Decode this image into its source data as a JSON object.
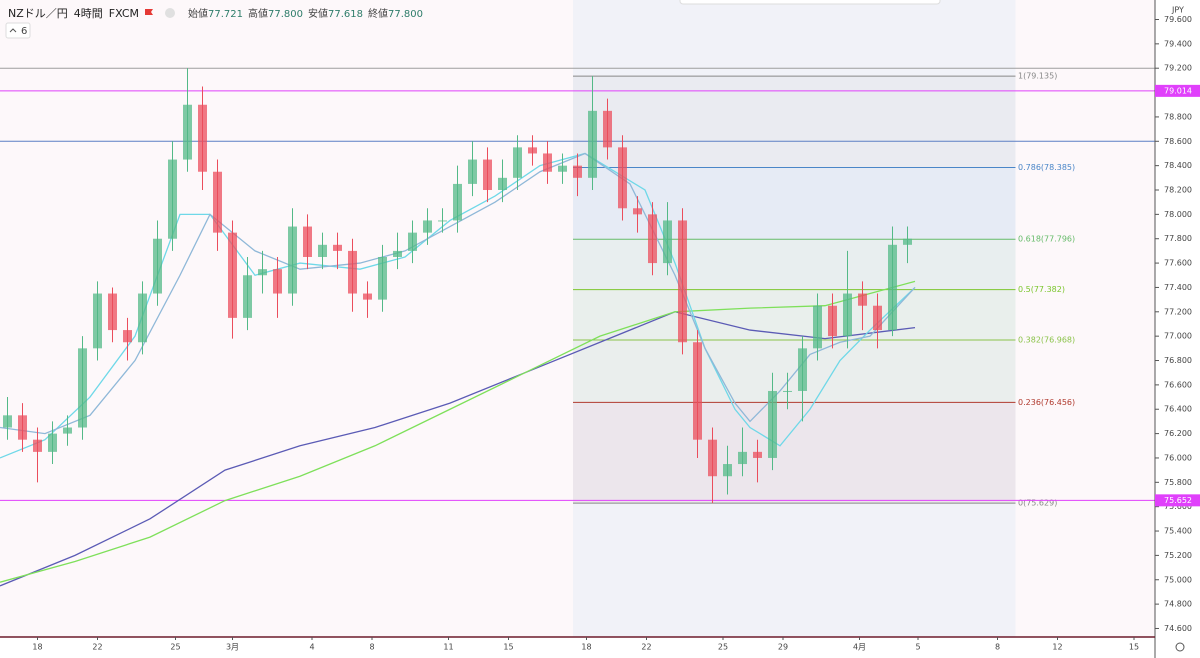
{
  "header": {
    "symbol": "NZドル／円",
    "interval": "4時間",
    "source": "FXCM",
    "indicator_count": "6",
    "currency": "JPY",
    "ohlc": [
      {
        "label": "始値",
        "value": "77.721"
      },
      {
        "label": "高値",
        "value": "77.800"
      },
      {
        "label": "安値",
        "value": "77.618"
      },
      {
        "label": "終値",
        "value": "77.800"
      }
    ]
  },
  "chart_data": {
    "type": "candlestick",
    "xlim": [
      0,
      77
    ],
    "ylim": [
      74.53,
      79.76
    ],
    "xticks": [
      {
        "value": 2.5,
        "label": "18"
      },
      {
        "value": 6.5,
        "label": "22"
      },
      {
        "value": 11.7,
        "label": "25"
      },
      {
        "value": 15.5,
        "label": "3月"
      },
      {
        "value": 20.8,
        "label": "4"
      },
      {
        "value": 24.8,
        "label": "8"
      },
      {
        "value": 29.9,
        "label": "11"
      },
      {
        "value": 33.9,
        "label": "15"
      },
      {
        "value": 39.1,
        "label": "18"
      },
      {
        "value": 43.1,
        "label": "22"
      },
      {
        "value": 48.2,
        "label": "25"
      },
      {
        "value": 52.2,
        "label": "29"
      },
      {
        "value": 57.3,
        "label": "4月"
      },
      {
        "value": 61.2,
        "label": "5"
      },
      {
        "value": 66.5,
        "label": "8"
      },
      {
        "value": 70.5,
        "label": "12"
      },
      {
        "value": 75.6,
        "label": "15"
      }
    ],
    "yticks": [
      {
        "value": 74.6,
        "label": "74.600"
      },
      {
        "value": 74.8,
        "label": "74.800"
      },
      {
        "value": 75,
        "label": "75.000"
      },
      {
        "value": 75.2,
        "label": "75.200"
      },
      {
        "value": 75.4,
        "label": "75.400"
      },
      {
        "value": 75.6,
        "label": "75.600"
      },
      {
        "value": 75.8,
        "label": "75.800"
      },
      {
        "value": 76,
        "label": "76.000"
      },
      {
        "value": 76.2,
        "label": "76.200"
      },
      {
        "value": 76.4,
        "label": "76.400"
      },
      {
        "value": 76.6,
        "label": "76.600"
      },
      {
        "value": 76.8,
        "label": "76.800"
      },
      {
        "value": 77,
        "label": "77.000"
      },
      {
        "value": 77.2,
        "label": "77.200"
      },
      {
        "value": 77.4,
        "label": "77.400"
      },
      {
        "value": 77.6,
        "label": "77.600"
      },
      {
        "value": 77.8,
        "label": "77.800"
      },
      {
        "value": 78,
        "label": "78.000"
      },
      {
        "value": 78.2,
        "label": "78.200"
      },
      {
        "value": 78.4,
        "label": "78.400"
      },
      {
        "value": 78.6,
        "label": "78.600"
      },
      {
        "value": 78.8,
        "label": "78.800"
      },
      {
        "value": 79,
        "label": "79.000"
      },
      {
        "value": 79.2,
        "label": "79.200"
      },
      {
        "value": 79.4,
        "label": "79.400"
      },
      {
        "value": 79.6,
        "label": "79.600"
      }
    ],
    "up_color": "#53b987",
    "down_color": "#eb4d5c",
    "candles": {
      "x": [
        0.5,
        1.5,
        2.5,
        3.5,
        4.5,
        5.5,
        6.5,
        7.5,
        8.5,
        9.5,
        10.5,
        11.5,
        12.5,
        13.5,
        14.5,
        15.5,
        16.5,
        17.5,
        18.5,
        19.5,
        20.5,
        21.5,
        22.5,
        23.5,
        24.5,
        25.5,
        26.5,
        27.5,
        28.5,
        29.5,
        30.5,
        31.5,
        32.5,
        33.5,
        34.5,
        35.5,
        36.5,
        37.5,
        38.5,
        39.5,
        40.5,
        41.5,
        42.5,
        43.5,
        44.5,
        45.5,
        46.5,
        47.5,
        48.5,
        49.5,
        50.5,
        51.5,
        52.5,
        53.5,
        54.5,
        55.5,
        56.5,
        57.5,
        58.5,
        59.5,
        60.5
      ],
      "open": [
        76.25,
        76.35,
        76.15,
        76.05,
        76.2,
        76.25,
        76.9,
        77.35,
        77.05,
        76.95,
        77.35,
        77.8,
        78.45,
        78.9,
        78.35,
        77.85,
        77.15,
        77.5,
        77.55,
        77.35,
        77.9,
        77.65,
        77.75,
        77.7,
        77.35,
        77.3,
        77.65,
        77.7,
        77.85,
        77.95,
        77.95,
        78.25,
        78.45,
        78.2,
        78.3,
        78.55,
        78.5,
        78.35,
        78.4,
        78.3,
        78.85,
        78.55,
        78.05,
        78.0,
        77.6,
        77.95,
        76.95,
        76.15,
        75.85,
        75.95,
        76.05,
        76.0,
        76.55,
        76.55,
        76.9,
        77.25,
        77.0,
        77.35,
        77.25,
        77.05,
        77.75
      ],
      "high": [
        76.5,
        76.45,
        76.25,
        76.3,
        76.35,
        77.0,
        77.45,
        77.4,
        77.15,
        77.45,
        77.95,
        78.6,
        79.2,
        79.05,
        78.45,
        77.95,
        77.65,
        77.7,
        77.65,
        78.05,
        78.0,
        77.85,
        77.85,
        77.8,
        77.45,
        77.75,
        77.85,
        77.95,
        78.05,
        78.05,
        78.4,
        78.6,
        78.55,
        78.45,
        78.65,
        78.65,
        78.6,
        78.5,
        78.5,
        79.135,
        78.95,
        78.65,
        78.15,
        78.1,
        78.1,
        78.05,
        77.05,
        76.25,
        76.1,
        76.25,
        76.15,
        76.7,
        76.7,
        77.0,
        77.35,
        77.35,
        77.7,
        77.45,
        77.35,
        77.9,
        77.9
      ],
      "low": [
        76.15,
        76.05,
        75.8,
        75.95,
        76.1,
        76.15,
        76.8,
        76.95,
        76.8,
        76.85,
        77.25,
        77.7,
        78.35,
        78.2,
        77.7,
        76.98,
        77.05,
        77.35,
        77.15,
        77.25,
        77.55,
        77.55,
        77.55,
        77.2,
        77.15,
        77.2,
        77.55,
        77.6,
        77.75,
        77.85,
        77.85,
        78.15,
        78.1,
        78.1,
        78.2,
        78.4,
        78.25,
        78.25,
        78.15,
        78.2,
        78.45,
        77.95,
        77.85,
        77.5,
        77.5,
        76.85,
        76.0,
        75.629,
        75.7,
        75.85,
        75.8,
        75.9,
        76.4,
        76.3,
        76.8,
        76.9,
        76.9,
        77.05,
        76.9,
        77.0,
        77.6
      ],
      "close": [
        76.35,
        76.15,
        76.05,
        76.2,
        76.25,
        76.9,
        77.35,
        77.05,
        76.95,
        77.35,
        77.8,
        78.45,
        78.9,
        78.35,
        77.85,
        77.15,
        77.5,
        77.55,
        77.35,
        77.9,
        77.65,
        77.75,
        77.7,
        77.35,
        77.3,
        77.65,
        77.7,
        77.85,
        77.95,
        77.95,
        78.25,
        78.45,
        78.2,
        78.3,
        78.55,
        78.5,
        78.35,
        78.4,
        78.3,
        78.85,
        78.55,
        78.05,
        78.0,
        77.6,
        77.95,
        76.95,
        76.15,
        75.85,
        75.95,
        76.05,
        76.0,
        76.55,
        76.55,
        76.9,
        77.25,
        77.0,
        77.35,
        77.25,
        77.05,
        77.75,
        77.8
      ]
    },
    "series": [
      {
        "color": "#5b5bb5",
        "x": [
          0,
          5,
          10,
          15,
          20,
          25,
          30,
          35,
          40,
          45,
          50,
          55,
          61
        ],
        "values": [
          74.95,
          75.2,
          75.5,
          75.9,
          76.1,
          76.25,
          76.45,
          76.7,
          76.95,
          77.2,
          77.05,
          76.98,
          77.07
        ]
      },
      {
        "color": "#7ee05a",
        "x": [
          0,
          5,
          10,
          15,
          20,
          25,
          30,
          35,
          40,
          45,
          50,
          55,
          58,
          61
        ],
        "values": [
          74.98,
          75.15,
          75.35,
          75.65,
          75.85,
          76.1,
          76.4,
          76.7,
          77.0,
          77.2,
          77.23,
          77.25,
          77.35,
          77.45
        ]
      },
      {
        "color": "#6fd8e8",
        "x": [
          0,
          3,
          6,
          9,
          12,
          14,
          17,
          20,
          24,
          27,
          30,
          33,
          36,
          39,
          41,
          43,
          45,
          47,
          49,
          50,
          52,
          54,
          56,
          58,
          61
        ],
        "values": [
          76.0,
          76.15,
          76.5,
          77.0,
          78.0,
          78.0,
          77.5,
          77.6,
          77.55,
          77.65,
          77.95,
          78.15,
          78.4,
          78.5,
          78.35,
          78.2,
          77.6,
          76.9,
          76.4,
          76.25,
          76.1,
          76.4,
          76.8,
          77.05,
          77.4
        ]
      },
      {
        "color": "#8fb8d8",
        "x": [
          0,
          3,
          6,
          9,
          12,
          14,
          17,
          20,
          24,
          27,
          30,
          33,
          36,
          39,
          42,
          45,
          47,
          49,
          50,
          52,
          54,
          56,
          58,
          61
        ],
        "values": [
          76.25,
          76.2,
          76.35,
          76.8,
          77.5,
          78.0,
          77.7,
          77.55,
          77.6,
          77.7,
          77.9,
          78.1,
          78.35,
          78.5,
          78.25,
          77.5,
          76.9,
          76.45,
          76.3,
          76.55,
          76.85,
          76.95,
          77.0,
          77.4
        ]
      }
    ],
    "price_lines": [
      {
        "value": 79.2,
        "color": "#9e9e9e"
      },
      {
        "value": 79.014,
        "color": "#e040fb",
        "value_label": "79.014"
      },
      {
        "value": 78.6,
        "color": "#5c7fc4"
      },
      {
        "value": 75.652,
        "color": "#e040fb",
        "value_label": "75.652"
      }
    ],
    "fib": {
      "x": [
        38.2,
        67.7
      ],
      "levels": [
        {
          "value": 79.135,
          "label": "1(79.135)",
          "color": "#888888"
        },
        {
          "value": 78.385,
          "label": "0.786(78.385)",
          "color": "#4a86c8"
        },
        {
          "value": 77.796,
          "label": "0.618(77.796)",
          "color": "#66bb6a"
        },
        {
          "value": 77.382,
          "label": "0.5(77.382)",
          "color": "#7cc62e"
        },
        {
          "value": 76.968,
          "label": "0.382(76.968)",
          "color": "#8bc34a"
        },
        {
          "value": 76.456,
          "label": "0.236(76.456)",
          "color": "#b03a2e"
        },
        {
          "value": 75.629,
          "label": "0(75.629)",
          "color": "#888888"
        }
      ]
    }
  }
}
